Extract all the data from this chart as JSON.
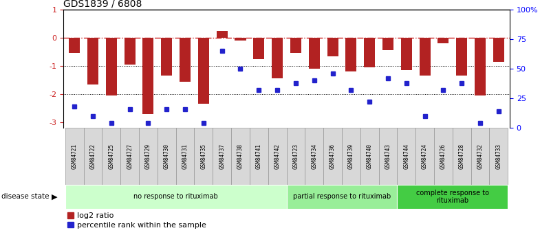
{
  "title": "GDS1839 / 6808",
  "samples": [
    "GSM84721",
    "GSM84722",
    "GSM84725",
    "GSM84727",
    "GSM84729",
    "GSM84730",
    "GSM84731",
    "GSM84735",
    "GSM84737",
    "GSM84738",
    "GSM84741",
    "GSM84742",
    "GSM84723",
    "GSM84734",
    "GSM84736",
    "GSM84739",
    "GSM84740",
    "GSM84743",
    "GSM84744",
    "GSM84724",
    "GSM84726",
    "GSM84728",
    "GSM84732",
    "GSM84733"
  ],
  "log2_ratio": [
    -0.55,
    -1.65,
    -2.05,
    -0.95,
    -2.7,
    -1.35,
    -1.55,
    -2.35,
    0.25,
    -0.1,
    -0.75,
    -1.45,
    -0.55,
    -1.1,
    -0.65,
    -1.2,
    -1.05,
    -0.45,
    -1.15,
    -1.35,
    -0.2,
    -1.35,
    -2.05,
    -0.85
  ],
  "percentile": [
    18,
    10,
    4,
    16,
    4,
    16,
    16,
    4,
    65,
    50,
    32,
    32,
    38,
    40,
    46,
    32,
    22,
    42,
    38,
    10,
    32,
    38,
    4,
    14
  ],
  "bar_color": "#b22222",
  "square_color": "#2222cc",
  "ylim_left": [
    -3.2,
    1.0
  ],
  "ylim_right": [
    0,
    100
  ],
  "dashed_line_color": "#cc2222",
  "groups": [
    {
      "label": "no response to rituximab",
      "start": 0,
      "end": 12,
      "color": "#ccffcc"
    },
    {
      "label": "partial response to rituximab",
      "start": 12,
      "end": 18,
      "color": "#99ee99"
    },
    {
      "label": "complete response to\nrituximab",
      "start": 18,
      "end": 24,
      "color": "#44cc44"
    }
  ],
  "left_yticks": [
    1,
    0,
    -1,
    -2,
    -3
  ],
  "right_yticks": [
    100,
    75,
    50,
    25,
    0
  ],
  "right_yticklabels": [
    "100%",
    "75",
    "50",
    "25",
    "0"
  ],
  "disease_state_label": "disease state",
  "legend_red_label": "log2 ratio",
  "legend_blue_label": "percentile rank within the sample",
  "sample_box_color": "#d8d8d8",
  "sample_box_edge": "#888888"
}
